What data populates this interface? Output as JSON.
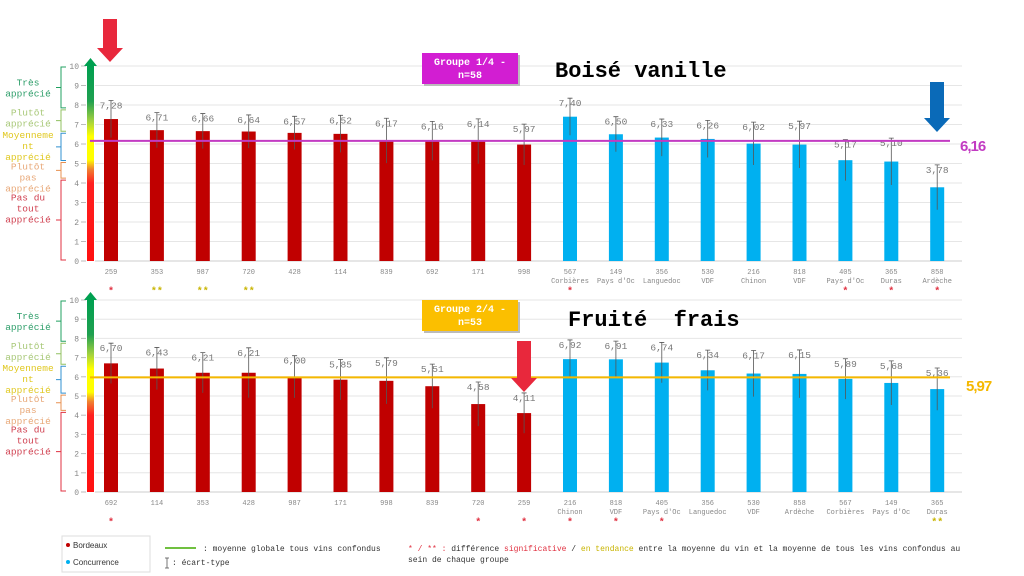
{
  "scale_labels": {
    "tres": "Très apprécié",
    "plutot": "Plutôt apprécié",
    "moyen": "Moyennement apprécié",
    "plutot_pas": "Plutôt pas apprécié",
    "pas_du_tout": "Pas du tout apprécié"
  },
  "colors": {
    "bordeaux": "#c00000",
    "concurrence": "#00b0f0",
    "group1": "#d21ed2",
    "group2": "#fbbf00",
    "mean1": "#c23bc2",
    "mean2": "#f5b800",
    "sig": "#e03040",
    "tendance": "#c8b400"
  },
  "legend": {
    "bordeaux": "Bordeaux",
    "concurrence": "Concurrence",
    "mean_line": ": moyenne globale tous vins confondus",
    "sd": ": écart-type",
    "note_markers": "* / ** :",
    "note_a": "différence",
    "note_sig": "significative",
    "note_slash": "/",
    "note_tend": "en tendance",
    "note_b": "entre la moyenne du vin et la moyenne de tous les vins confondus au",
    "note_c": "sein de chaque groupe"
  },
  "chart_data": [
    {
      "type": "bar",
      "title": "Boisé vanille",
      "group_label": "Groupe 1/4 -",
      "group_n": "n=58",
      "mean": 6.16,
      "mean_label": "6,16",
      "ylim": [
        0,
        10
      ],
      "yticks": [
        0,
        1,
        2,
        3,
        4,
        5,
        6,
        7,
        8,
        9,
        10
      ],
      "grid": true,
      "error_bars": "écart-type",
      "bars": [
        {
          "code": "259",
          "region": "",
          "value": 7.28,
          "label": "7,28",
          "sd": 0.95,
          "group": "Bordeaux",
          "marker": "*"
        },
        {
          "code": "353",
          "region": "",
          "value": 6.71,
          "label": "6,71",
          "sd": 0.9,
          "group": "Bordeaux",
          "marker": "**"
        },
        {
          "code": "987",
          "region": "",
          "value": 6.66,
          "label": "6,66",
          "sd": 0.9,
          "group": "Bordeaux",
          "marker": "**"
        },
        {
          "code": "720",
          "region": "",
          "value": 6.64,
          "label": "6,64",
          "sd": 0.85,
          "group": "Bordeaux",
          "marker": "**"
        },
        {
          "code": "428",
          "region": "",
          "value": 6.57,
          "label": "6,57",
          "sd": 0.85,
          "group": "Bordeaux",
          "marker": ""
        },
        {
          "code": "114",
          "region": "",
          "value": 6.52,
          "label": "6,52",
          "sd": 0.95,
          "group": "Bordeaux",
          "marker": ""
        },
        {
          "code": "839",
          "region": "",
          "value": 6.17,
          "label": "6,17",
          "sd": 1.15,
          "group": "Bordeaux",
          "marker": ""
        },
        {
          "code": "692",
          "region": "",
          "value": 6.16,
          "label": "6,16",
          "sd": 1.0,
          "group": "Bordeaux",
          "marker": ""
        },
        {
          "code": "171",
          "region": "",
          "value": 6.14,
          "label": "6,14",
          "sd": 1.15,
          "group": "Bordeaux",
          "marker": ""
        },
        {
          "code": "998",
          "region": "",
          "value": 5.97,
          "label": "5,97",
          "sd": 1.05,
          "group": "Bordeaux",
          "marker": ""
        },
        {
          "code": "567",
          "region": "Corbières",
          "value": 7.4,
          "label": "7,40",
          "sd": 0.95,
          "group": "Concurrence",
          "marker": "*"
        },
        {
          "code": "149",
          "region": "Pays d'Oc",
          "value": 6.5,
          "label": "6,50",
          "sd": 0.9,
          "group": "Concurrence",
          "marker": ""
        },
        {
          "code": "356",
          "region": "Languedoc",
          "value": 6.33,
          "label": "6,33",
          "sd": 0.95,
          "group": "Concurrence",
          "marker": ""
        },
        {
          "code": "530",
          "region": "VDF",
          "value": 6.26,
          "label": "6,26",
          "sd": 0.95,
          "group": "Concurrence",
          "marker": ""
        },
        {
          "code": "216",
          "region": "Chinon",
          "value": 6.02,
          "label": "6,02",
          "sd": 1.1,
          "group": "Concurrence",
          "marker": ""
        },
        {
          "code": "818",
          "region": "VDF",
          "value": 5.97,
          "label": "5,97",
          "sd": 1.2,
          "group": "Concurrence",
          "marker": ""
        },
        {
          "code": "405",
          "region": "Pays d'Oc",
          "value": 5.17,
          "label": "5,17",
          "sd": 1.05,
          "group": "Concurrence",
          "marker": "*"
        },
        {
          "code": "365",
          "region": "Duras",
          "value": 5.1,
          "label": "5,10",
          "sd": 1.2,
          "group": "Concurrence",
          "marker": "*"
        },
        {
          "code": "858",
          "region": "Ardèche",
          "value": 3.78,
          "label": "3,78",
          "sd": 1.15,
          "group": "Concurrence",
          "marker": "*"
        }
      ]
    },
    {
      "type": "bar",
      "title": "Fruité  frais",
      "group_label": "Groupe 2/4 -",
      "group_n": "n=53",
      "mean": 5.97,
      "mean_label": "5,97",
      "ylim": [
        0,
        10
      ],
      "yticks": [
        0,
        1,
        2,
        3,
        4,
        5,
        6,
        7,
        8,
        9,
        10
      ],
      "grid": true,
      "error_bars": "écart-type",
      "bars": [
        {
          "code": "692",
          "region": "",
          "value": 6.7,
          "label": "6,70",
          "sd": 1.05,
          "group": "Bordeaux",
          "marker": "*"
        },
        {
          "code": "114",
          "region": "",
          "value": 6.43,
          "label": "6,43",
          "sd": 1.1,
          "group": "Bordeaux",
          "marker": ""
        },
        {
          "code": "353",
          "region": "",
          "value": 6.21,
          "label": "6,21",
          "sd": 1.05,
          "group": "Bordeaux",
          "marker": ""
        },
        {
          "code": "428",
          "region": "",
          "value": 6.21,
          "label": "6,21",
          "sd": 1.3,
          "group": "Bordeaux",
          "marker": ""
        },
        {
          "code": "987",
          "region": "",
          "value": 6.0,
          "label": "6,00",
          "sd": 1.1,
          "group": "Bordeaux",
          "marker": ""
        },
        {
          "code": "171",
          "region": "",
          "value": 5.85,
          "label": "5,85",
          "sd": 1.05,
          "group": "Bordeaux",
          "marker": ""
        },
        {
          "code": "998",
          "region": "",
          "value": 5.79,
          "label": "5,79",
          "sd": 1.2,
          "group": "Bordeaux",
          "marker": ""
        },
        {
          "code": "839",
          "region": "",
          "value": 5.51,
          "label": "5,51",
          "sd": 1.15,
          "group": "Bordeaux",
          "marker": ""
        },
        {
          "code": "720",
          "region": "",
          "value": 4.58,
          "label": "4,58",
          "sd": 1.15,
          "group": "Bordeaux",
          "marker": "*"
        },
        {
          "code": "259",
          "region": "",
          "value": 4.11,
          "label": "4,11",
          "sd": 1.05,
          "group": "Bordeaux",
          "marker": "*"
        },
        {
          "code": "216",
          "region": "Chinon",
          "value": 6.92,
          "label": "6,92",
          "sd": 1.0,
          "group": "Concurrence",
          "marker": "*"
        },
        {
          "code": "818",
          "region": "VDF",
          "value": 6.91,
          "label": "6,91",
          "sd": 0.95,
          "group": "Concurrence",
          "marker": "*"
        },
        {
          "code": "405",
          "region": "Pays d'Oc",
          "value": 6.74,
          "label": "6,74",
          "sd": 1.05,
          "group": "Concurrence",
          "marker": "*"
        },
        {
          "code": "356",
          "region": "Languedoc",
          "value": 6.34,
          "label": "6,34",
          "sd": 1.05,
          "group": "Concurrence",
          "marker": ""
        },
        {
          "code": "530",
          "region": "VDF",
          "value": 6.17,
          "label": "6,17",
          "sd": 1.2,
          "group": "Concurrence",
          "marker": ""
        },
        {
          "code": "858",
          "region": "Ardèche",
          "value": 6.15,
          "label": "6,15",
          "sd": 1.25,
          "group": "Concurrence",
          "marker": ""
        },
        {
          "code": "567",
          "region": "Corbières",
          "value": 5.89,
          "label": "5,89",
          "sd": 1.05,
          "group": "Concurrence",
          "marker": ""
        },
        {
          "code": "149",
          "region": "Pays d'Oc",
          "value": 5.68,
          "label": "5,68",
          "sd": 1.15,
          "group": "Concurrence",
          "marker": ""
        },
        {
          "code": "365",
          "region": "Duras",
          "value": 5.36,
          "label": "5,36",
          "sd": 1.1,
          "group": "Concurrence",
          "marker": "**"
        }
      ]
    }
  ]
}
